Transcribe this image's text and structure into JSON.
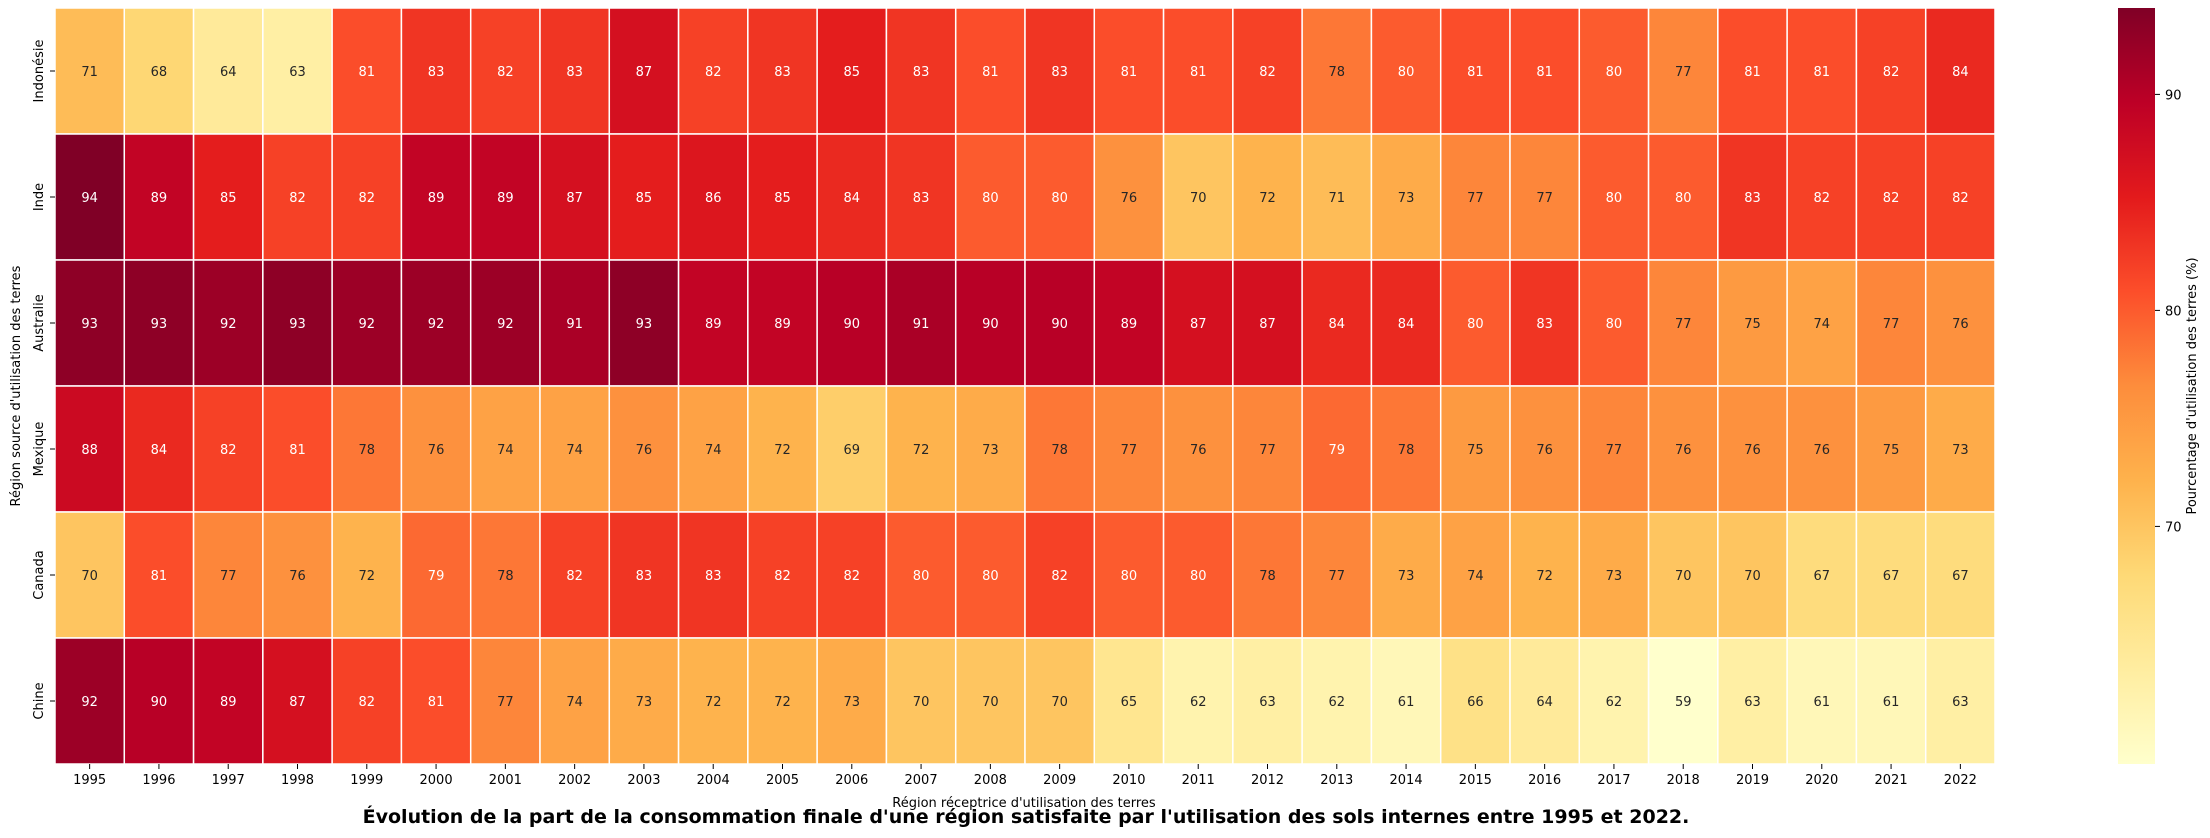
{
  "chart_data": {
    "type": "heatmap",
    "title": "Évolution de la part de la consommation finale d'une région satisfaite par l'utilisation des sols internes entre 1995 et 2022.",
    "xlabel": "Région réceptrice d'utilisation des terres",
    "ylabel": "Région source d'utilisation des terres",
    "colorbar_label": "Pourcentage d'utilisation des terres (%)",
    "colorbar_ticks": [
      70,
      80,
      90
    ],
    "colormap": "YlOrRd",
    "vmin": 59,
    "vmax": 94,
    "x": [
      "1995",
      "1996",
      "1997",
      "1998",
      "1999",
      "2000",
      "2001",
      "2002",
      "2003",
      "2004",
      "2005",
      "2006",
      "2007",
      "2008",
      "2009",
      "2010",
      "2011",
      "2012",
      "2013",
      "2014",
      "2015",
      "2016",
      "2017",
      "2018",
      "2019",
      "2020",
      "2021",
      "2022"
    ],
    "y": [
      "Indonésie",
      "Inde",
      "Australie",
      "Mexique",
      "Canada",
      "Chine"
    ],
    "values": [
      [
        71,
        68,
        64,
        63,
        81,
        83,
        82,
        83,
        87,
        82,
        83,
        85,
        83,
        81,
        83,
        81,
        81,
        82,
        78,
        80,
        81,
        81,
        80,
        77,
        81,
        81,
        82,
        84
      ],
      [
        94,
        89,
        85,
        82,
        82,
        89,
        89,
        87,
        85,
        86,
        85,
        84,
        83,
        80,
        80,
        76,
        70,
        72,
        71,
        73,
        77,
        77,
        80,
        80,
        83,
        82,
        82,
        82
      ],
      [
        93,
        93,
        92,
        93,
        92,
        92,
        92,
        91,
        93,
        89,
        89,
        90,
        91,
        90,
        90,
        89,
        87,
        87,
        84,
        84,
        80,
        83,
        80,
        77,
        75,
        74,
        77,
        76
      ],
      [
        88,
        84,
        82,
        81,
        78,
        76,
        74,
        74,
        76,
        74,
        72,
        69,
        72,
        73,
        78,
        77,
        76,
        77,
        79,
        78,
        75,
        76,
        77,
        76,
        76,
        76,
        75,
        73
      ],
      [
        70,
        81,
        77,
        76,
        72,
        79,
        78,
        82,
        83,
        83,
        82,
        82,
        80,
        80,
        82,
        80,
        80,
        78,
        77,
        73,
        74,
        72,
        73,
        70,
        70,
        67,
        67,
        67
      ],
      [
        92,
        90,
        89,
        87,
        82,
        81,
        77,
        74,
        73,
        72,
        72,
        73,
        70,
        70,
        70,
        65,
        62,
        63,
        62,
        61,
        66,
        64,
        62,
        59,
        63,
        61,
        61,
        63
      ]
    ]
  }
}
